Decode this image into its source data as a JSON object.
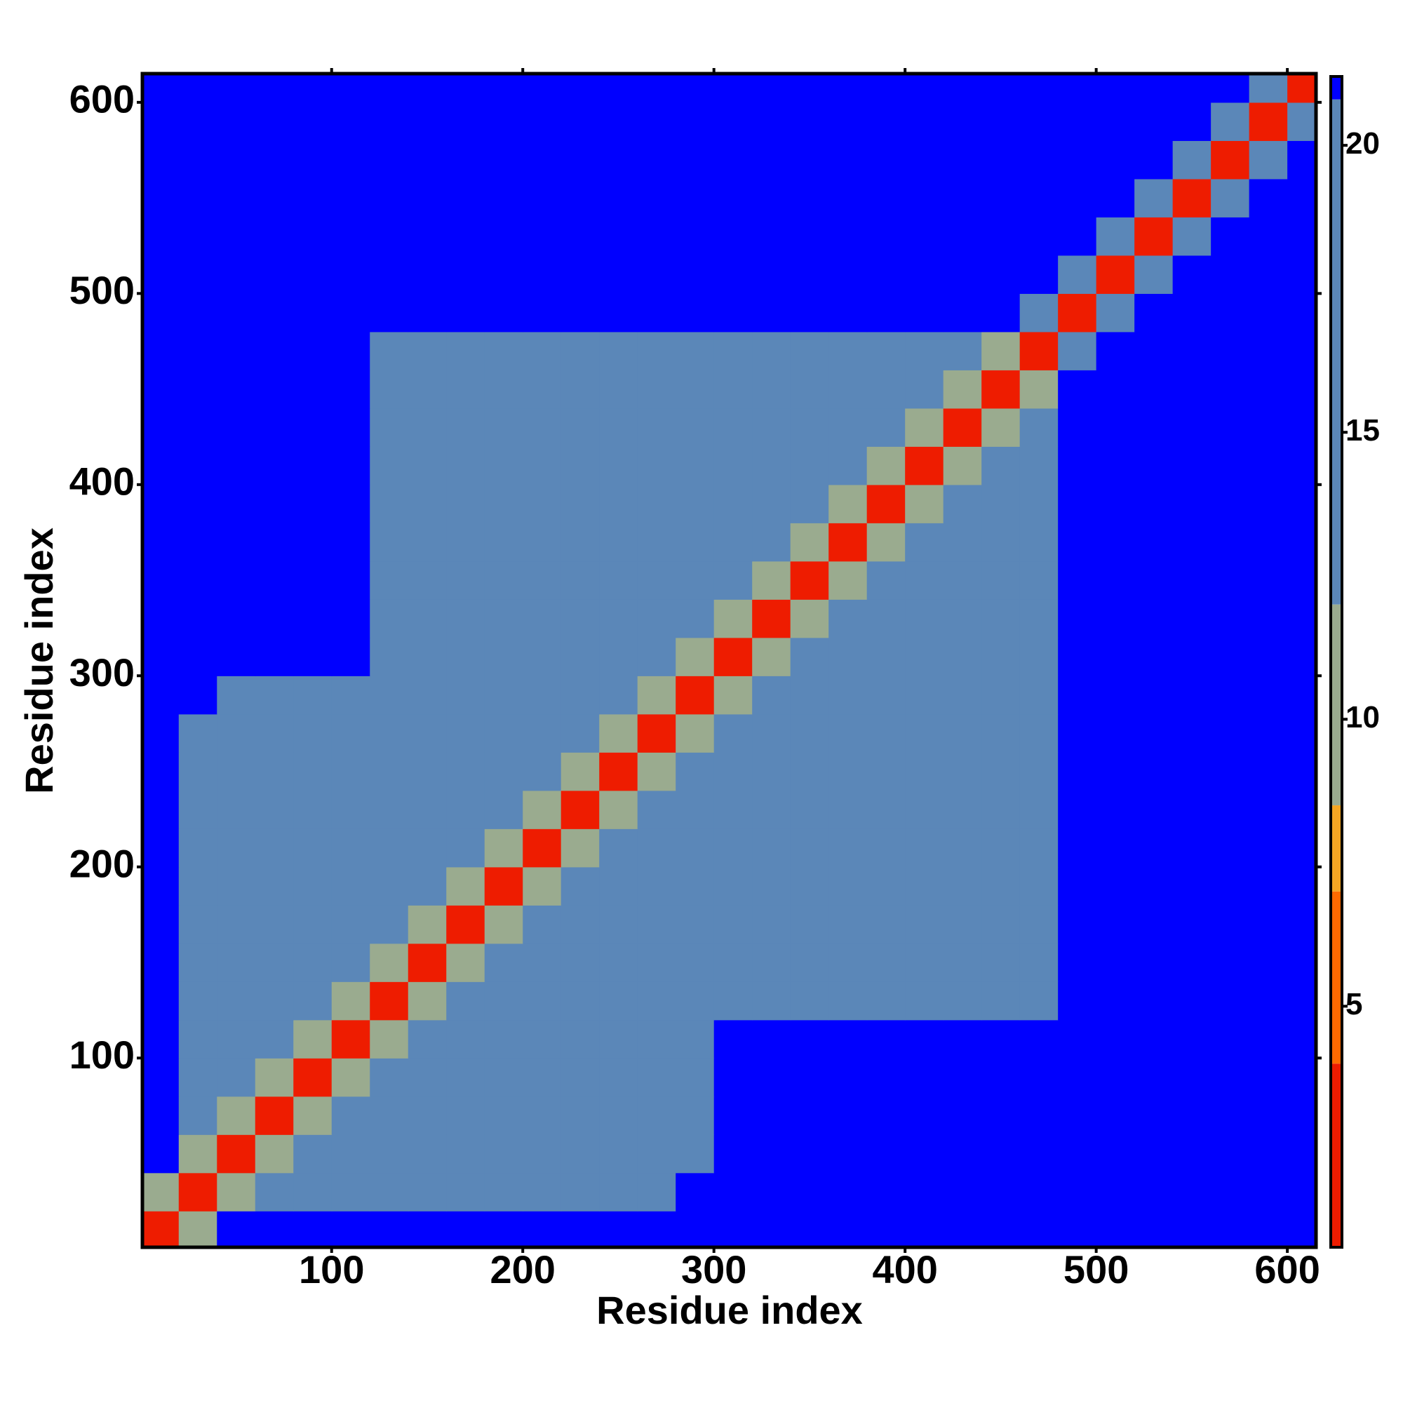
{
  "chart_data": {
    "type": "heatmap",
    "x_label": "Residue index",
    "y_label": "Residue index",
    "xlim": [
      1,
      615
    ],
    "ylim": [
      1,
      615
    ],
    "xticks": [
      100,
      200,
      300,
      400,
      500,
      600
    ],
    "yticks": [
      100,
      200,
      300,
      400,
      500,
      600
    ],
    "bins": [
      0,
      20,
      40,
      60,
      80,
      100,
      120,
      140,
      160,
      180,
      200,
      220,
      240,
      260,
      280,
      300,
      320,
      340,
      360,
      380,
      400,
      420,
      440,
      460,
      480,
      500,
      520,
      540,
      560,
      580,
      600,
      620
    ],
    "clim": [
      0.8,
      21.2
    ],
    "cticks": [
      5,
      10,
      15,
      20
    ],
    "colorscale": [
      {
        "max": 4,
        "color": "#ee1c00"
      },
      {
        "max": 7,
        "color": "#ff6a00"
      },
      {
        "max": 8.5,
        "color": "#f5a623"
      },
      {
        "max": 12,
        "color": "#9aab8f"
      },
      {
        "max": 20.8,
        "color": "#5b87b8"
      },
      {
        "max": 21.2,
        "color": "#0000ff"
      }
    ],
    "z": [
      [
        3,
        9,
        21,
        21,
        21,
        21,
        21,
        21,
        21,
        21,
        21,
        21,
        21,
        21,
        21,
        21,
        21,
        21,
        21,
        21,
        21,
        21,
        21,
        21,
        21,
        21,
        21,
        21,
        21,
        21,
        21
      ],
      [
        9,
        3,
        9,
        19,
        19,
        19,
        19,
        19,
        19,
        19,
        19,
        19,
        19,
        19,
        21,
        21,
        21,
        21,
        21,
        21,
        21,
        21,
        21,
        21,
        21,
        21,
        21,
        21,
        21,
        21,
        21
      ],
      [
        21,
        9,
        3,
        9,
        13,
        15,
        15,
        15,
        15,
        15,
        15,
        15,
        15,
        15,
        15,
        21,
        21,
        21,
        21,
        21,
        21,
        21,
        21,
        21,
        21,
        21,
        21,
        21,
        21,
        21,
        21
      ],
      [
        21,
        19,
        9,
        3,
        9,
        13,
        15,
        15,
        15,
        15,
        15,
        15,
        15,
        15,
        15,
        21,
        21,
        21,
        21,
        21,
        21,
        21,
        21,
        21,
        21,
        21,
        21,
        21,
        21,
        21,
        21
      ],
      [
        21,
        19,
        13,
        9,
        3,
        9,
        13,
        15,
        15,
        15,
        15,
        15,
        15,
        15,
        15,
        21,
        21,
        21,
        21,
        21,
        21,
        21,
        21,
        21,
        21,
        21,
        21,
        21,
        21,
        21,
        21
      ],
      [
        21,
        19,
        15,
        13,
        9,
        3,
        9,
        13,
        15,
        15,
        15,
        15,
        15,
        15,
        15,
        21,
        21,
        21,
        21,
        21,
        21,
        21,
        21,
        21,
        21,
        21,
        21,
        21,
        21,
        21,
        21
      ],
      [
        21,
        19,
        15,
        15,
        13,
        9,
        3,
        9,
        13,
        15,
        15,
        15,
        15,
        15,
        15,
        18,
        18,
        18,
        18,
        18,
        18,
        18,
        18,
        18,
        21,
        21,
        21,
        21,
        21,
        21,
        21
      ],
      [
        21,
        19,
        15,
        15,
        15,
        13,
        9,
        3,
        9,
        13,
        15,
        15,
        15,
        15,
        15,
        18,
        18,
        18,
        18,
        18,
        18,
        18,
        18,
        18,
        21,
        21,
        21,
        21,
        21,
        21,
        21
      ],
      [
        21,
        19,
        15,
        15,
        15,
        15,
        13,
        9,
        3,
        9,
        13,
        15,
        15,
        15,
        15,
        18,
        18,
        18,
        18,
        18,
        18,
        18,
        18,
        18,
        21,
        21,
        21,
        21,
        21,
        21,
        21
      ],
      [
        21,
        19,
        15,
        15,
        15,
        15,
        15,
        13,
        9,
        3,
        9,
        13,
        15,
        15,
        15,
        18,
        18,
        18,
        18,
        18,
        18,
        18,
        18,
        18,
        21,
        21,
        21,
        21,
        21,
        21,
        21
      ],
      [
        21,
        19,
        15,
        15,
        15,
        15,
        15,
        15,
        13,
        9,
        3,
        9,
        13,
        15,
        15,
        18,
        18,
        18,
        18,
        18,
        18,
        18,
        18,
        18,
        21,
        21,
        21,
        21,
        21,
        21,
        21
      ],
      [
        21,
        19,
        15,
        15,
        15,
        15,
        15,
        15,
        15,
        13,
        9,
        3,
        9,
        13,
        15,
        18,
        18,
        18,
        18,
        18,
        18,
        18,
        18,
        18,
        21,
        21,
        21,
        21,
        21,
        21,
        21
      ],
      [
        21,
        19,
        15,
        15,
        15,
        15,
        15,
        15,
        15,
        15,
        13,
        9,
        3,
        9,
        13,
        18,
        18,
        18,
        18,
        18,
        18,
        18,
        18,
        18,
        21,
        21,
        21,
        21,
        21,
        21,
        21
      ],
      [
        21,
        19,
        15,
        15,
        15,
        15,
        15,
        15,
        15,
        15,
        15,
        13,
        9,
        3,
        9,
        18,
        18,
        18,
        18,
        18,
        18,
        18,
        18,
        18,
        21,
        21,
        21,
        21,
        21,
        21,
        21
      ],
      [
        21,
        21,
        15,
        15,
        15,
        15,
        15,
        15,
        15,
        15,
        15,
        15,
        13,
        9,
        3,
        9,
        18,
        18,
        18,
        18,
        18,
        18,
        18,
        18,
        21,
        21,
        21,
        21,
        21,
        21,
        21
      ],
      [
        21,
        21,
        21,
        21,
        21,
        21,
        18,
        18,
        18,
        18,
        18,
        18,
        18,
        18,
        9,
        3,
        9,
        13,
        15,
        15,
        15,
        15,
        15,
        15,
        21,
        21,
        21,
        21,
        21,
        21,
        21
      ],
      [
        21,
        21,
        21,
        21,
        21,
        21,
        18,
        18,
        18,
        18,
        18,
        18,
        18,
        18,
        18,
        9,
        3,
        9,
        13,
        15,
        15,
        15,
        15,
        15,
        21,
        21,
        21,
        21,
        21,
        21,
        21
      ],
      [
        21,
        21,
        21,
        21,
        21,
        21,
        18,
        18,
        18,
        18,
        18,
        18,
        18,
        18,
        18,
        13,
        9,
        3,
        9,
        13,
        15,
        15,
        15,
        15,
        21,
        21,
        21,
        21,
        21,
        21,
        21
      ],
      [
        21,
        21,
        21,
        21,
        21,
        21,
        18,
        18,
        18,
        18,
        18,
        18,
        18,
        18,
        18,
        15,
        13,
        9,
        3,
        9,
        13,
        15,
        15,
        15,
        21,
        21,
        21,
        21,
        21,
        21,
        21
      ],
      [
        21,
        21,
        21,
        21,
        21,
        21,
        18,
        18,
        18,
        18,
        18,
        18,
        18,
        18,
        18,
        15,
        15,
        13,
        9,
        3,
        9,
        13,
        15,
        15,
        21,
        21,
        21,
        21,
        21,
        21,
        21
      ],
      [
        21,
        21,
        21,
        21,
        21,
        21,
        18,
        18,
        18,
        18,
        18,
        18,
        18,
        18,
        18,
        15,
        15,
        15,
        13,
        9,
        3,
        9,
        13,
        15,
        21,
        21,
        21,
        21,
        21,
        21,
        21
      ],
      [
        21,
        21,
        21,
        21,
        21,
        21,
        18,
        18,
        18,
        18,
        18,
        18,
        18,
        18,
        18,
        15,
        15,
        15,
        15,
        13,
        9,
        3,
        9,
        13,
        21,
        21,
        21,
        21,
        21,
        21,
        21
      ],
      [
        21,
        21,
        21,
        21,
        21,
        21,
        18,
        18,
        18,
        18,
        18,
        18,
        18,
        18,
        18,
        15,
        15,
        15,
        15,
        15,
        13,
        9,
        3,
        9,
        21,
        21,
        21,
        21,
        21,
        21,
        21
      ],
      [
        21,
        21,
        21,
        21,
        21,
        21,
        18,
        18,
        18,
        18,
        18,
        18,
        18,
        18,
        18,
        15,
        15,
        15,
        15,
        15,
        15,
        13,
        9,
        3,
        20,
        21,
        21,
        21,
        21,
        21,
        21
      ],
      [
        21,
        21,
        21,
        21,
        21,
        21,
        21,
        21,
        21,
        21,
        21,
        21,
        21,
        21,
        21,
        21,
        21,
        21,
        21,
        21,
        21,
        21,
        21,
        20,
        3,
        20,
        21,
        21,
        21,
        21,
        21
      ],
      [
        21,
        21,
        21,
        21,
        21,
        21,
        21,
        21,
        21,
        21,
        21,
        21,
        21,
        21,
        21,
        21,
        21,
        21,
        21,
        21,
        21,
        21,
        21,
        21,
        20,
        3,
        20,
        21,
        21,
        21,
        21
      ],
      [
        21,
        21,
        21,
        21,
        21,
        21,
        21,
        21,
        21,
        21,
        21,
        21,
        21,
        21,
        21,
        21,
        21,
        21,
        21,
        21,
        21,
        21,
        21,
        21,
        21,
        20,
        3,
        20,
        21,
        21,
        21
      ],
      [
        21,
        21,
        21,
        21,
        21,
        21,
        21,
        21,
        21,
        21,
        21,
        21,
        21,
        21,
        21,
        21,
        21,
        21,
        21,
        21,
        21,
        21,
        21,
        21,
        21,
        21,
        20,
        3,
        20,
        21,
        21
      ],
      [
        21,
        21,
        21,
        21,
        21,
        21,
        21,
        21,
        21,
        21,
        21,
        21,
        21,
        21,
        21,
        21,
        21,
        21,
        21,
        21,
        21,
        21,
        21,
        21,
        21,
        21,
        21,
        20,
        3,
        20,
        21
      ],
      [
        21,
        21,
        21,
        21,
        21,
        21,
        21,
        21,
        21,
        21,
        21,
        21,
        21,
        21,
        21,
        21,
        21,
        21,
        21,
        21,
        21,
        21,
        21,
        21,
        21,
        21,
        21,
        21,
        20,
        3,
        20
      ],
      [
        21,
        21,
        21,
        21,
        21,
        21,
        21,
        21,
        21,
        21,
        21,
        21,
        21,
        21,
        21,
        21,
        21,
        21,
        21,
        21,
        21,
        21,
        21,
        21,
        21,
        21,
        21,
        21,
        21,
        20,
        3
      ]
    ]
  }
}
